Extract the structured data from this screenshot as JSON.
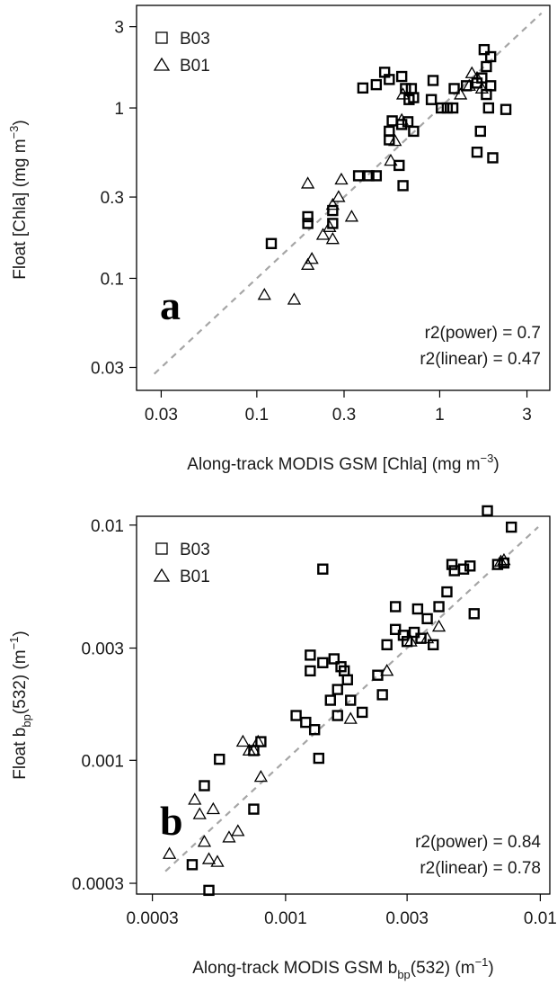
{
  "chart_data": [
    {
      "type": "scatter",
      "panel_label": "a",
      "xlabel": {
        "main": "Along-track MODIS GSM [Chla] (mg m",
        "sup": "−3",
        "end": ")"
      },
      "ylabel": {
        "main": "Float [Chla] (mg m",
        "sup": "−3",
        "end": ")"
      },
      "x_scale": "log",
      "y_scale": "log",
      "xlim": [
        0.022,
        4.0
      ],
      "ylim": [
        0.022,
        4.0
      ],
      "x_ticks": [
        0.03,
        0.1,
        0.3,
        1,
        3
      ],
      "x_tick_labels": [
        "0.03",
        "0.1",
        "0.3",
        "1",
        "3"
      ],
      "y_ticks": [
        0.03,
        0.1,
        0.3,
        1,
        3
      ],
      "y_tick_labels": [
        "0.03",
        "0.1",
        "0.3",
        "1",
        "3"
      ],
      "one_to_one_line": true,
      "legend_position": "top-left",
      "stats": [
        "r2(power) = 0.7",
        "r2(linear) = 0.47"
      ],
      "series": [
        {
          "name": "B03",
          "marker": "square",
          "points": [
            [
              0.12,
              0.16
            ],
            [
              0.19,
              0.21
            ],
            [
              0.19,
              0.23
            ],
            [
              0.26,
              0.21
            ],
            [
              0.26,
              0.25
            ],
            [
              0.36,
              0.4
            ],
            [
              0.41,
              0.4
            ],
            [
              0.45,
              0.4
            ],
            [
              0.38,
              1.31
            ],
            [
              0.45,
              1.37
            ],
            [
              0.5,
              1.62
            ],
            [
              0.53,
              1.47
            ],
            [
              0.62,
              1.53
            ],
            [
              0.65,
              1.3
            ],
            [
              0.7,
              1.3
            ],
            [
              0.55,
              0.84
            ],
            [
              0.53,
              0.73
            ],
            [
              0.53,
              0.65
            ],
            [
              0.62,
              0.8
            ],
            [
              0.67,
              0.83
            ],
            [
              0.72,
              0.73
            ],
            [
              0.6,
              0.46
            ],
            [
              0.63,
              0.35
            ],
            [
              0.68,
              1.12
            ],
            [
              0.72,
              1.15
            ],
            [
              0.9,
              1.12
            ],
            [
              0.92,
              1.45
            ],
            [
              1.02,
              1.0
            ],
            [
              1.1,
              1.0
            ],
            [
              1.18,
              1.0
            ],
            [
              1.2,
              1.3
            ],
            [
              1.4,
              1.35
            ],
            [
              1.6,
              0.55
            ],
            [
              1.67,
              0.73
            ],
            [
              1.6,
              1.4
            ],
            [
              1.7,
              1.5
            ],
            [
              1.8,
              1.75
            ],
            [
              1.75,
              2.2
            ],
            [
              1.9,
              2.0
            ],
            [
              1.9,
              1.35
            ],
            [
              1.85,
              1.0
            ],
            [
              1.95,
              0.51
            ],
            [
              2.3,
              0.98
            ],
            [
              1.8,
              1.2
            ]
          ]
        },
        {
          "name": "B01",
          "marker": "triangle",
          "points": [
            [
              0.11,
              0.08
            ],
            [
              0.16,
              0.075
            ],
            [
              0.19,
              0.12
            ],
            [
              0.2,
              0.13
            ],
            [
              0.19,
              0.36
            ],
            [
              0.23,
              0.18
            ],
            [
              0.25,
              0.2
            ],
            [
              0.26,
              0.17
            ],
            [
              0.26,
              0.27
            ],
            [
              0.28,
              0.3
            ],
            [
              0.29,
              0.38
            ],
            [
              0.33,
              0.23
            ],
            [
              0.54,
              0.49
            ],
            [
              0.57,
              0.64
            ],
            [
              0.62,
              0.85
            ],
            [
              0.63,
              1.2
            ],
            [
              1.3,
              1.2
            ],
            [
              1.45,
              1.35
            ],
            [
              1.5,
              1.6
            ],
            [
              1.6,
              1.5
            ],
            [
              1.7,
              1.3
            ]
          ]
        }
      ]
    },
    {
      "type": "scatter",
      "panel_label": "b",
      "xlabel": {
        "main": "Along-track MODIS GSM b",
        "sub": "bp",
        "end": "(532) (m",
        "sup": "−1",
        "end2": ")"
      },
      "ylabel": {
        "main": "Float b",
        "sub": "bp",
        "end": "(532) (m",
        "sup": "−1",
        "end2": ")"
      },
      "x_scale": "log",
      "y_scale": "log",
      "xlim": [
        0.00026,
        0.0109
      ],
      "ylim": [
        0.00027,
        0.0109
      ],
      "x_ticks": [
        0.0003,
        0.001,
        0.003,
        0.01
      ],
      "x_tick_labels": [
        "0.0003",
        "0.001",
        "0.003",
        "0.01"
      ],
      "y_ticks": [
        0.0003,
        0.001,
        0.003,
        0.01
      ],
      "y_tick_labels": [
        "0.0003",
        "0.001",
        "0.003",
        "0.01"
      ],
      "one_to_one_line": true,
      "legend_position": "top-left",
      "stats": [
        "r2(power) = 0.84",
        "r2(linear) = 0.78"
      ],
      "series": [
        {
          "name": "B03",
          "marker": "square",
          "points": [
            [
              0.00043,
              0.00036
            ],
            [
              0.0005,
              0.00028
            ],
            [
              0.00048,
              0.00078
            ],
            [
              0.00055,
              0.00101
            ],
            [
              0.00075,
              0.00062
            ],
            [
              0.00075,
              0.0011
            ],
            [
              0.0008,
              0.0012
            ],
            [
              0.0011,
              0.00155
            ],
            [
              0.0012,
              0.00145
            ],
            [
              0.0013,
              0.00135
            ],
            [
              0.00135,
              0.00102
            ],
            [
              0.00125,
              0.0028
            ],
            [
              0.00125,
              0.0024
            ],
            [
              0.0014,
              0.0026
            ],
            [
              0.0014,
              0.0065
            ],
            [
              0.0015,
              0.0018
            ],
            [
              0.00155,
              0.0027
            ],
            [
              0.00165,
              0.0025
            ],
            [
              0.0016,
              0.002
            ],
            [
              0.0017,
              0.0024
            ],
            [
              0.00175,
              0.0022
            ],
            [
              0.0018,
              0.0018
            ],
            [
              0.0016,
              0.00155
            ],
            [
              0.002,
              0.0016
            ],
            [
              0.0023,
              0.0023
            ],
            [
              0.0024,
              0.0019
            ],
            [
              0.0025,
              0.0031
            ],
            [
              0.0027,
              0.0045
            ],
            [
              0.0027,
              0.0036
            ],
            [
              0.0029,
              0.0034
            ],
            [
              0.003,
              0.0032
            ],
            [
              0.0032,
              0.0035
            ],
            [
              0.0034,
              0.0033
            ],
            [
              0.0033,
              0.0044
            ],
            [
              0.0036,
              0.004
            ],
            [
              0.0038,
              0.0031
            ],
            [
              0.004,
              0.0045
            ],
            [
              0.0043,
              0.0052
            ],
            [
              0.0045,
              0.0068
            ],
            [
              0.0046,
              0.0064
            ],
            [
              0.005,
              0.0065
            ],
            [
              0.0053,
              0.0067
            ],
            [
              0.0055,
              0.0042
            ],
            [
              0.0062,
              0.0115
            ],
            [
              0.0068,
              0.0068
            ],
            [
              0.0072,
              0.0069
            ],
            [
              0.0077,
              0.0098
            ]
          ]
        },
        {
          "name": "B01",
          "marker": "triangle",
          "points": [
            [
              0.00035,
              0.0004
            ],
            [
              0.00044,
              0.00068
            ],
            [
              0.00046,
              0.00059
            ],
            [
              0.00048,
              0.00045
            ],
            [
              0.0005,
              0.00038
            ],
            [
              0.00052,
              0.00062
            ],
            [
              0.00054,
              0.00037
            ],
            [
              0.0006,
              0.00047
            ],
            [
              0.00065,
              0.0005
            ],
            [
              0.00068,
              0.0012
            ],
            [
              0.00072,
              0.0011
            ],
            [
              0.00075,
              0.0011
            ],
            [
              0.00078,
              0.0012
            ],
            [
              0.0008,
              0.00085
            ],
            [
              0.0018,
              0.0015
            ],
            [
              0.0025,
              0.0024
            ],
            [
              0.0031,
              0.0032
            ],
            [
              0.0036,
              0.0033
            ],
            [
              0.004,
              0.0037
            ],
            [
              0.007,
              0.007
            ],
            [
              0.0072,
              0.0071
            ]
          ]
        }
      ]
    }
  ]
}
